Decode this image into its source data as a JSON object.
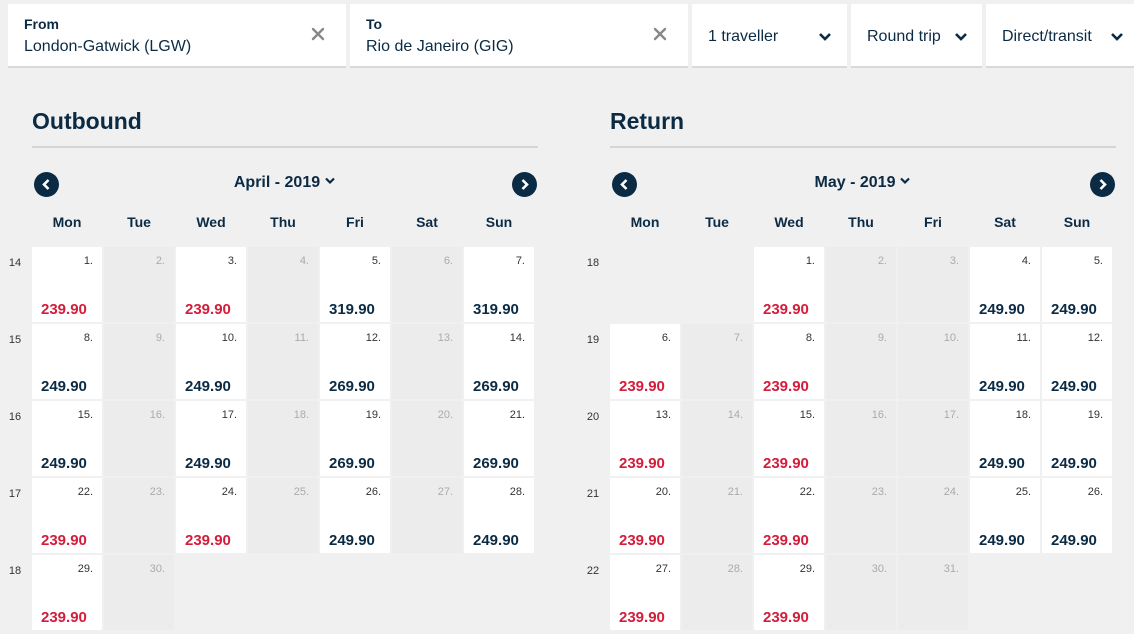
{
  "search": {
    "from_label": "From",
    "from_value": "London-Gatwick (LGW)",
    "to_label": "To",
    "to_value": "Rio de Janeiro (GIG)",
    "travellers": "1 traveller",
    "trip_type": "Round trip",
    "stops": "Direct/transit"
  },
  "colors": {
    "navy": "#0b2a44",
    "cheap_red": "#d41c3b",
    "unavailable": "#ececec"
  },
  "outbound": {
    "title": "Outbound",
    "month_label": "April - 2019",
    "weekdays": [
      "Mon",
      "Tue",
      "Wed",
      "Thu",
      "Fri",
      "Sat",
      "Sun"
    ],
    "weeks": [
      "14",
      "15",
      "16",
      "17",
      "18"
    ],
    "days": [
      {
        "day": "1.",
        "price": "239.90",
        "cheap": true
      },
      {
        "day": "2."
      },
      {
        "day": "3.",
        "price": "239.90",
        "cheap": true
      },
      {
        "day": "4."
      },
      {
        "day": "5.",
        "price": "319.90"
      },
      {
        "day": "6."
      },
      {
        "day": "7.",
        "price": "319.90"
      },
      {
        "day": "8.",
        "price": "249.90"
      },
      {
        "day": "9."
      },
      {
        "day": "10.",
        "price": "249.90"
      },
      {
        "day": "11."
      },
      {
        "day": "12.",
        "price": "269.90"
      },
      {
        "day": "13."
      },
      {
        "day": "14.",
        "price": "269.90"
      },
      {
        "day": "15.",
        "price": "249.90"
      },
      {
        "day": "16."
      },
      {
        "day": "17.",
        "price": "249.90"
      },
      {
        "day": "18."
      },
      {
        "day": "19.",
        "price": "269.90"
      },
      {
        "day": "20."
      },
      {
        "day": "21.",
        "price": "269.90"
      },
      {
        "day": "22.",
        "price": "239.90",
        "cheap": true
      },
      {
        "day": "23."
      },
      {
        "day": "24.",
        "price": "239.90",
        "cheap": true
      },
      {
        "day": "25."
      },
      {
        "day": "26.",
        "price": "249.90"
      },
      {
        "day": "27."
      },
      {
        "day": "28.",
        "price": "249.90"
      },
      {
        "day": "29.",
        "price": "239.90",
        "cheap": true
      },
      {
        "day": "30."
      }
    ]
  },
  "return": {
    "title": "Return",
    "month_label": "May - 2019",
    "weekdays": [
      "Mon",
      "Tue",
      "Wed",
      "Thu",
      "Fri",
      "Sat",
      "Sun"
    ],
    "weeks": [
      "18",
      "19",
      "20",
      "21",
      "22"
    ],
    "days": [
      {
        "day": "1.",
        "price": "239.90",
        "cheap": true
      },
      {
        "day": "2."
      },
      {
        "day": "3."
      },
      {
        "day": "4.",
        "price": "249.90"
      },
      {
        "day": "5.",
        "price": "249.90"
      },
      {
        "day": "6.",
        "price": "239.90",
        "cheap": true
      },
      {
        "day": "7."
      },
      {
        "day": "8.",
        "price": "239.90",
        "cheap": true
      },
      {
        "day": "9."
      },
      {
        "day": "10."
      },
      {
        "day": "11.",
        "price": "249.90"
      },
      {
        "day": "12.",
        "price": "249.90"
      },
      {
        "day": "13.",
        "price": "239.90",
        "cheap": true
      },
      {
        "day": "14."
      },
      {
        "day": "15.",
        "price": "239.90",
        "cheap": true
      },
      {
        "day": "16."
      },
      {
        "day": "17."
      },
      {
        "day": "18.",
        "price": "249.90"
      },
      {
        "day": "19.",
        "price": "249.90"
      },
      {
        "day": "20.",
        "price": "239.90",
        "cheap": true
      },
      {
        "day": "21."
      },
      {
        "day": "22.",
        "price": "239.90",
        "cheap": true
      },
      {
        "day": "23."
      },
      {
        "day": "24."
      },
      {
        "day": "25.",
        "price": "249.90"
      },
      {
        "day": "26.",
        "price": "249.90"
      },
      {
        "day": "27.",
        "price": "239.90",
        "cheap": true
      },
      {
        "day": "28."
      },
      {
        "day": "29.",
        "price": "239.90",
        "cheap": true
      },
      {
        "day": "30."
      },
      {
        "day": "31."
      }
    ]
  }
}
